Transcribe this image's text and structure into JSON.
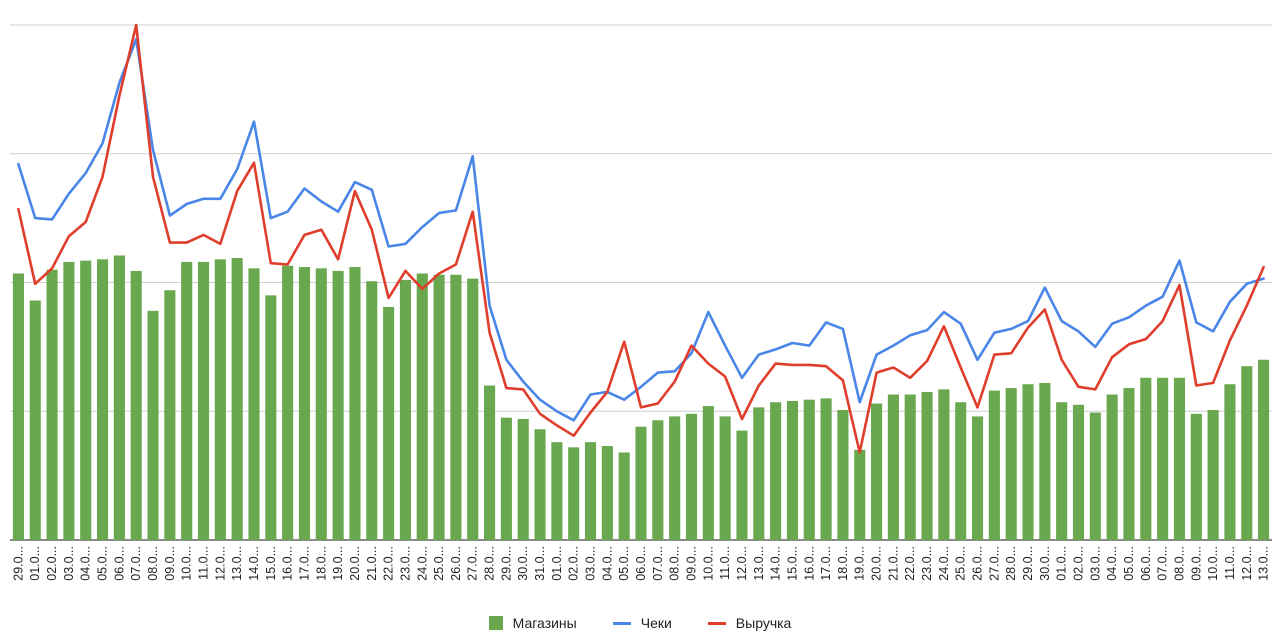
{
  "chart_data": {
    "type": "bar",
    "categories": [
      "29.0...",
      "01.0...",
      "02.0...",
      "03.0...",
      "04.0...",
      "05.0...",
      "06.0...",
      "07.0...",
      "08.0...",
      "09.0...",
      "10.0...",
      "11.0...",
      "12.0...",
      "13.0...",
      "14.0...",
      "15.0...",
      "16.0...",
      "17.0...",
      "18.0...",
      "19.0...",
      "20.0...",
      "21.0...",
      "22.0...",
      "23.0...",
      "24.0...",
      "25.0...",
      "26.0...",
      "27.0...",
      "28.0...",
      "29.0...",
      "30.0...",
      "31.0...",
      "01.0...",
      "02.0...",
      "03.0...",
      "04.0...",
      "05.0...",
      "06.0...",
      "07.0...",
      "08.0...",
      "09.0...",
      "10.0...",
      "11.0...",
      "12.0...",
      "13.0...",
      "14.0...",
      "15.0...",
      "16.0...",
      "17.0...",
      "18.0...",
      "19.0...",
      "20.0...",
      "21.0...",
      "22.0...",
      "23.0...",
      "24.0...",
      "25.0...",
      "26.0...",
      "27.0...",
      "28.0...",
      "29.0...",
      "30.0...",
      "01.0...",
      "02.0...",
      "03.0...",
      "04.0...",
      "05.0...",
      "06.0...",
      "07.0...",
      "08.0...",
      "09.0...",
      "10.0...",
      "11.0...",
      "12.0...",
      "13.0..."
    ],
    "series": [
      {
        "name": "Магазины",
        "type": "bar",
        "color": "#6aa84f",
        "values": [
          2.07,
          1.86,
          2.1,
          2.16,
          2.17,
          2.18,
          2.21,
          2.09,
          1.78,
          1.94,
          2.16,
          2.16,
          2.18,
          2.19,
          2.11,
          1.9,
          2.13,
          2.12,
          2.11,
          2.09,
          2.12,
          2.01,
          1.81,
          2.02,
          2.07,
          2.06,
          2.06,
          2.03,
          1.2,
          0.95,
          0.94,
          0.86,
          0.76,
          0.72,
          0.76,
          0.73,
          0.68,
          0.88,
          0.93,
          0.96,
          0.98,
          1.04,
          0.96,
          0.85,
          1.03,
          1.07,
          1.08,
          1.09,
          1.1,
          1.01,
          0.7,
          1.06,
          1.13,
          1.13,
          1.15,
          1.17,
          1.07,
          0.96,
          1.16,
          1.18,
          1.21,
          1.22,
          1.07,
          1.05,
          0.99,
          1.13,
          1.18,
          1.26,
          1.26,
          1.26,
          0.98,
          1.01,
          1.21,
          1.35,
          1.4
        ]
      },
      {
        "name": "Чеки",
        "type": "line",
        "color": "#4a86e8",
        "values": [
          2.92,
          2.5,
          2.49,
          2.69,
          2.85,
          3.08,
          3.55,
          3.89,
          3.03,
          2.52,
          2.61,
          2.65,
          2.65,
          2.88,
          3.25,
          2.5,
          2.55,
          2.73,
          2.63,
          2.55,
          2.78,
          2.72,
          2.28,
          2.3,
          2.43,
          2.54,
          2.56,
          2.98,
          1.82,
          1.4,
          1.23,
          1.09,
          1.0,
          0.93,
          1.13,
          1.15,
          1.09,
          1.19,
          1.3,
          1.31,
          1.45,
          1.77,
          1.51,
          1.26,
          1.44,
          1.48,
          1.53,
          1.51,
          1.69,
          1.64,
          1.07,
          1.44,
          1.51,
          1.59,
          1.63,
          1.77,
          1.68,
          1.4,
          1.61,
          1.64,
          1.7,
          1.96,
          1.7,
          1.62,
          1.5,
          1.68,
          1.73,
          1.82,
          1.89,
          2.17,
          1.69,
          1.62,
          1.85,
          1.99,
          2.03
        ]
      },
      {
        "name": "Выручка",
        "type": "line",
        "color": "#e03e2d",
        "values": [
          2.57,
          1.99,
          2.11,
          2.36,
          2.47,
          2.82,
          3.45,
          4.0,
          2.82,
          2.31,
          2.31,
          2.37,
          2.3,
          2.71,
          2.93,
          2.15,
          2.14,
          2.37,
          2.41,
          2.18,
          2.71,
          2.41,
          1.88,
          2.09,
          1.95,
          2.07,
          2.14,
          2.55,
          1.61,
          1.18,
          1.17,
          0.98,
          0.89,
          0.81,
          0.99,
          1.15,
          1.54,
          1.03,
          1.06,
          1.23,
          1.51,
          1.37,
          1.27,
          0.94,
          1.2,
          1.37,
          1.36,
          1.36,
          1.35,
          1.24,
          0.68,
          1.3,
          1.34,
          1.26,
          1.39,
          1.66,
          1.34,
          1.03,
          1.44,
          1.45,
          1.65,
          1.79,
          1.4,
          1.19,
          1.17,
          1.42,
          1.52,
          1.56,
          1.7,
          1.98,
          1.2,
          1.22,
          1.55,
          1.82,
          2.12
        ]
      }
    ],
    "ylim": [
      0,
      4.0
    ],
    "grid": true,
    "legend_position": "bottom",
    "xlabel": "",
    "ylabel": "",
    "title": ""
  },
  "legend": [
    {
      "label": "Магазины",
      "color": "#6aa84f",
      "kind": "bar"
    },
    {
      "label": "Чеки",
      "color": "#4a86e8",
      "kind": "line"
    },
    {
      "label": "Выручка",
      "color": "#e03e2d",
      "kind": "line"
    }
  ]
}
